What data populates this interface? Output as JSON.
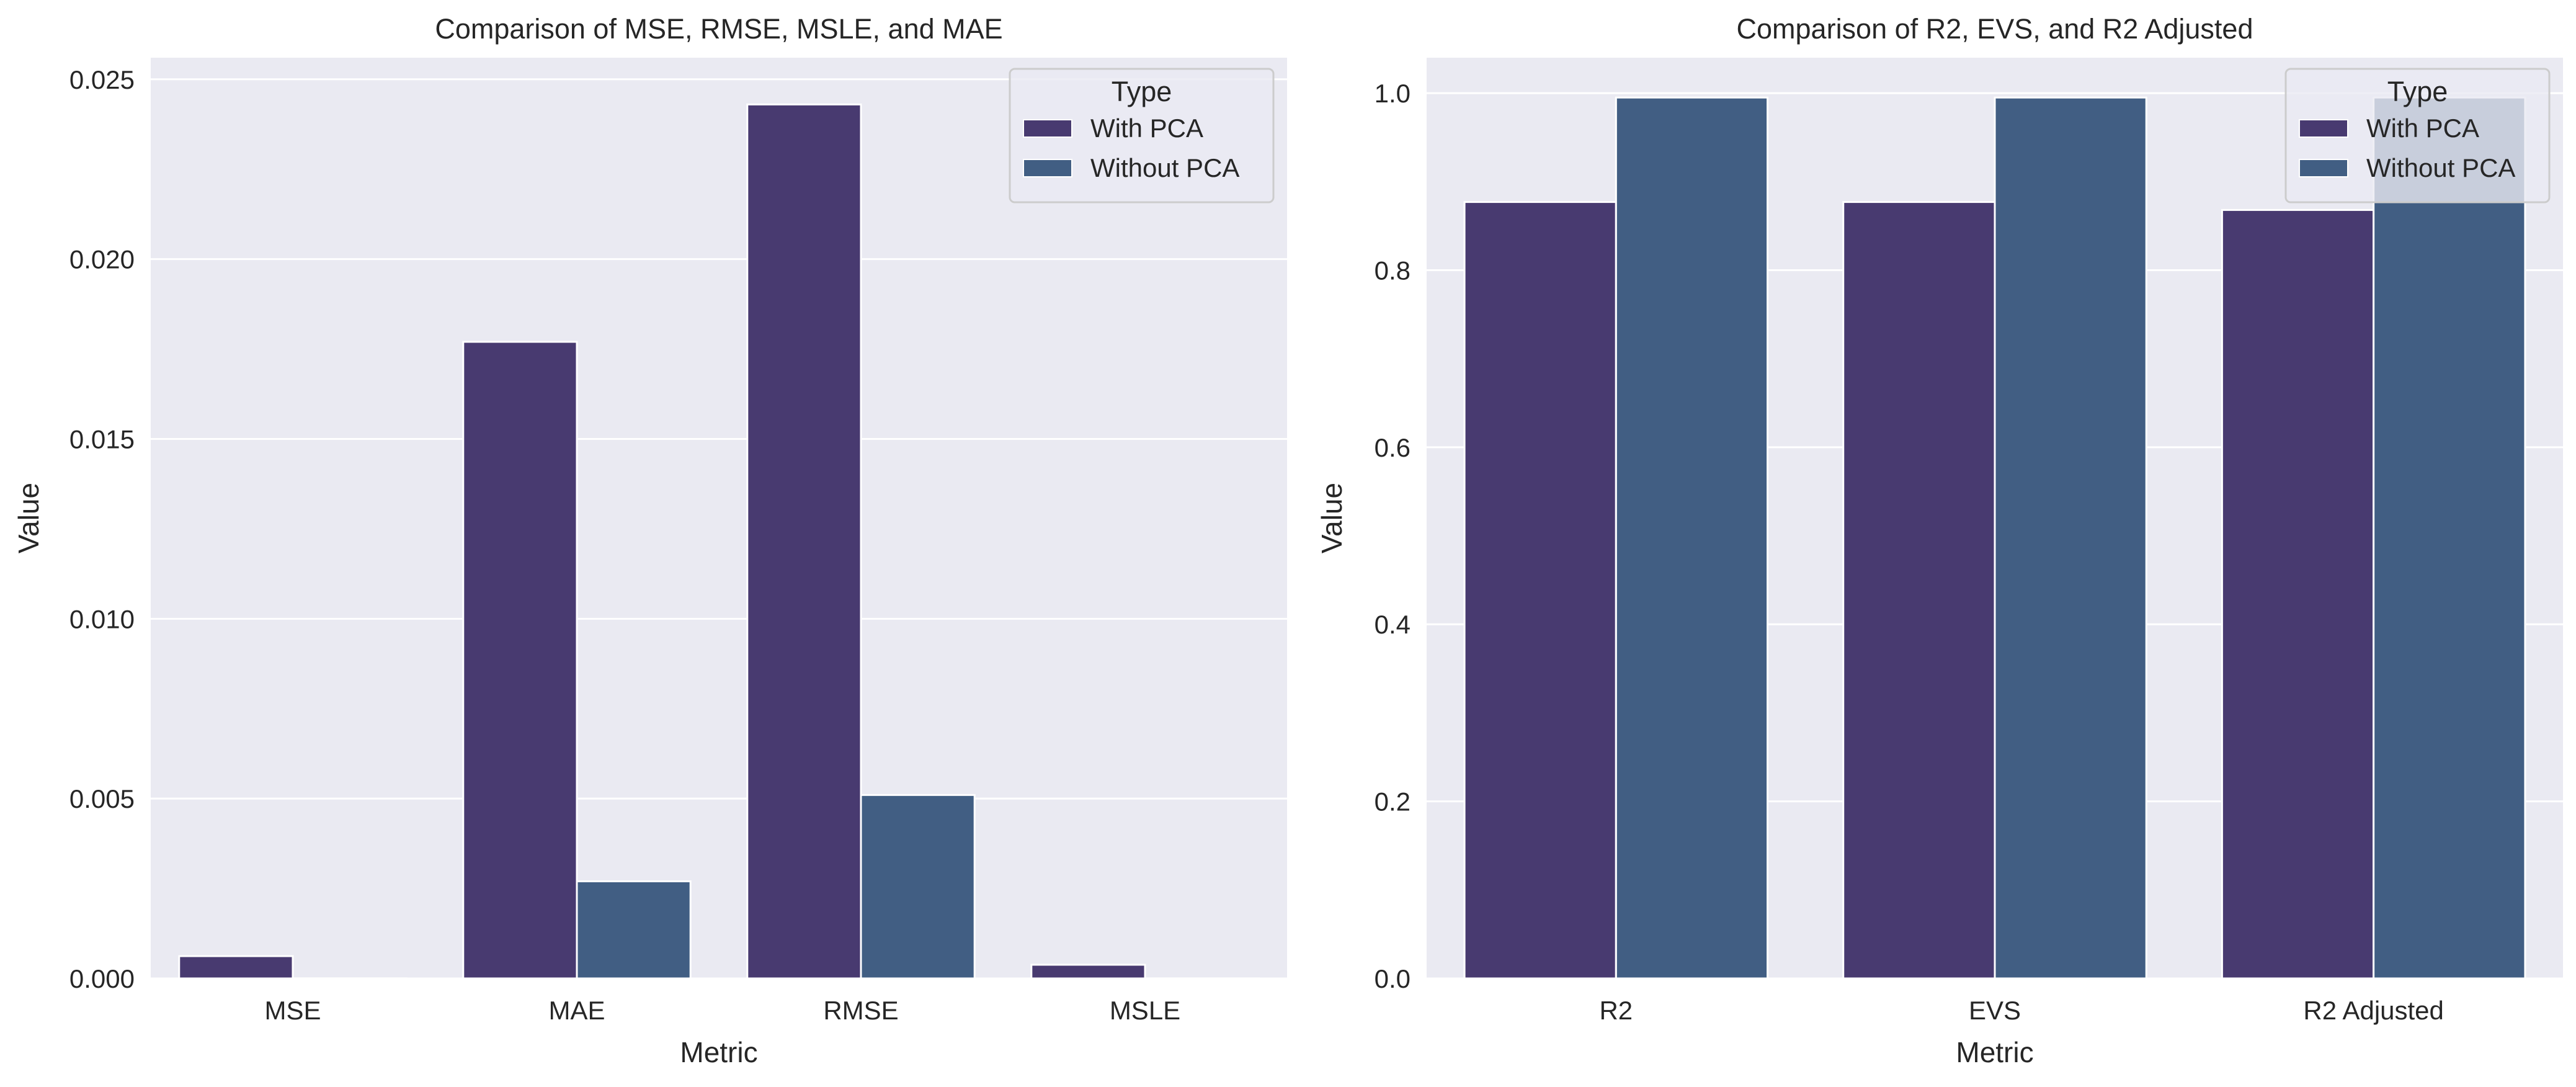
{
  "chart_data": [
    {
      "type": "bar",
      "title": "Comparison of MSE, RMSE, MSLE, and MAE",
      "xlabel": "Metric",
      "ylabel": "Value",
      "categories": [
        "MSE",
        "MAE",
        "RMSE",
        "MSLE"
      ],
      "ylim": [
        0,
        0.0256
      ],
      "yticks": [
        0.0,
        0.005,
        0.01,
        0.015,
        0.02,
        0.025
      ],
      "ytick_labels": [
        "0.000",
        "0.005",
        "0.010",
        "0.015",
        "0.020",
        "0.025"
      ],
      "legend": {
        "title": "Type",
        "position": "top-right"
      },
      "grid": true,
      "series": [
        {
          "name": "With PCA",
          "color": "#483a70",
          "values": [
            0.00062,
            0.0177,
            0.0243,
            0.00038
          ]
        },
        {
          "name": "Without PCA",
          "color": "#415e83",
          "values": [
            3e-06,
            0.0027,
            0.0051,
            1.5e-06
          ]
        }
      ]
    },
    {
      "type": "bar",
      "title": "Comparison of R2, EVS, and R2 Adjusted",
      "xlabel": "Metric",
      "ylabel": "Value",
      "categories": [
        "R2",
        "EVS",
        "R2 Adjusted"
      ],
      "ylim": [
        0,
        1.04
      ],
      "yticks": [
        0.0,
        0.2,
        0.4,
        0.6,
        0.8,
        1.0
      ],
      "ytick_labels": [
        "0.0",
        "0.2",
        "0.4",
        "0.6",
        "0.8",
        "1.0"
      ],
      "legend": {
        "title": "Type",
        "position": "top-right"
      },
      "grid": true,
      "series": [
        {
          "name": "With PCA",
          "color": "#483a70",
          "values": [
            0.877,
            0.877,
            0.868
          ]
        },
        {
          "name": "Without PCA",
          "color": "#415e83",
          "values": [
            0.995,
            0.995,
            0.995
          ]
        }
      ]
    }
  ]
}
